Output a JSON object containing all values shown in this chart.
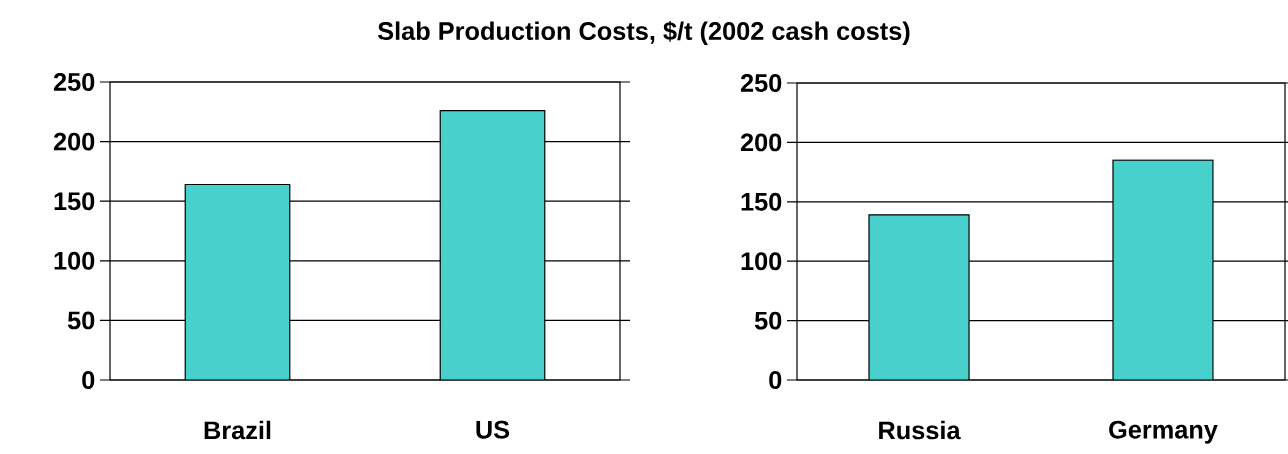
{
  "chart_data": [
    {
      "type": "bar",
      "title": "Slab Production Costs, $/t (2002 cash costs)",
      "categories": [
        "Brazil",
        "US"
      ],
      "values": [
        164,
        226
      ],
      "color": "#48d1cc",
      "ylim": [
        0,
        250
      ],
      "yticks": [
        0,
        50,
        100,
        150,
        200,
        250
      ],
      "grid": "y"
    },
    {
      "type": "bar",
      "categories": [
        "Russia",
        "Germany"
      ],
      "values": [
        139,
        185
      ],
      "color": "#48d1cc",
      "ylim": [
        0,
        250
      ],
      "yticks": [
        0,
        50,
        100,
        150,
        200,
        250
      ],
      "grid": "y"
    }
  ]
}
